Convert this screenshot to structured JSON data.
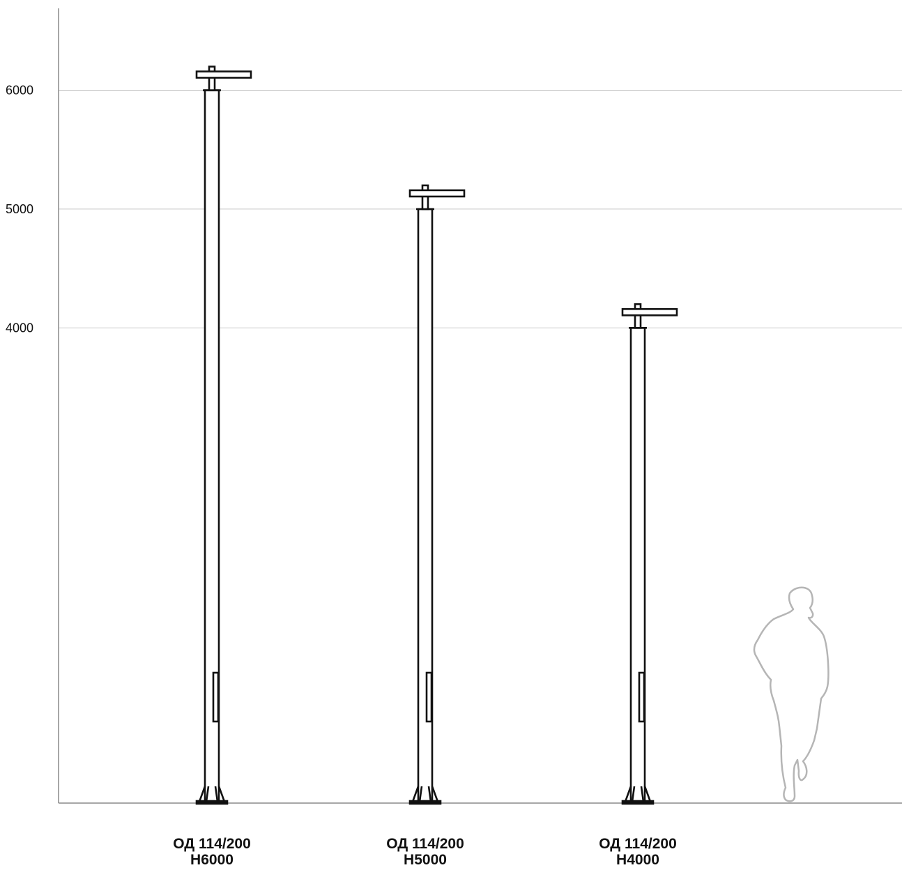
{
  "scale": {
    "ticks": [
      6000,
      5000,
      4000
    ],
    "ground": 0,
    "grid_color": "#c8c8c8",
    "axis_color": "#8a8a8a"
  },
  "poles": [
    {
      "model": "ОД 114/200",
      "height_label": "H6000",
      "height": 6000
    },
    {
      "model": "ОД 114/200",
      "height_label": "H5000",
      "height": 5000
    },
    {
      "model": "ОД 114/200",
      "height_label": "H4000",
      "height": 4000
    }
  ],
  "figure": {
    "icon": "person-silhouette-icon",
    "color": "#b5b5b5"
  }
}
